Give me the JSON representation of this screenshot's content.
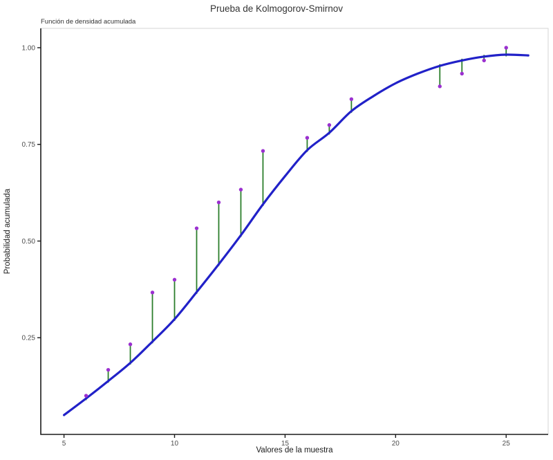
{
  "title": "Prueba de Kolmogorov-Smirnov",
  "subtitle": "Función de densidad acumulada",
  "chart_data": {
    "type": "line",
    "title": "Prueba de Kolmogorov-Smirnov",
    "subtitle": "Función de densidad acumulada",
    "xlabel": "Valores de la muestra",
    "ylabel": "Probabilidad acumulada",
    "xlim": [
      3.95,
      26.9
    ],
    "ylim": [
      0,
      1.05
    ],
    "x_ticks": [
      5,
      10,
      15,
      20,
      25
    ],
    "y_ticks": [
      0.25,
      0.5,
      0.75,
      1.0
    ],
    "y_tick_labels": [
      "0.25",
      "0.50",
      "0.75",
      "1.00"
    ],
    "grid": "off",
    "legend": "none",
    "series": [
      {
        "name": "curve",
        "description": "theoretical cumulative distribution (smooth blue curve)",
        "type": "smooth-line",
        "color": "#2121C8",
        "x": [
          5,
          6,
          7,
          8,
          9,
          10,
          11,
          12,
          13,
          14,
          15,
          16,
          17,
          18,
          19,
          20,
          21,
          22,
          23,
          24,
          25,
          26
        ],
        "y": [
          0.05,
          0.093,
          0.138,
          0.185,
          0.24,
          0.298,
          0.368,
          0.44,
          0.515,
          0.595,
          0.668,
          0.735,
          0.78,
          0.836,
          0.875,
          0.908,
          0.933,
          0.953,
          0.967,
          0.977,
          0.982,
          0.98
        ]
      },
      {
        "name": "points",
        "description": "empirical cumulative probabilities (purple dots)",
        "type": "scatter",
        "color": "#9B30D0",
        "x": [
          6,
          7,
          8,
          9,
          10,
          11,
          12,
          13,
          14,
          16,
          17,
          18,
          22,
          23,
          24,
          25
        ],
        "y": [
          0.1,
          0.167,
          0.233,
          0.367,
          0.4,
          0.533,
          0.6,
          0.633,
          0.733,
          0.767,
          0.8,
          0.867,
          0.9,
          0.933,
          0.967,
          1.0
        ]
      },
      {
        "name": "segments",
        "description": "vertical green segments joining each empirical point to the curve (K-S distances)",
        "type": "vertical-segments",
        "color": "#2B7E2B"
      }
    ]
  },
  "colors": {
    "curve": "#2121C8",
    "points": "#9B30D0",
    "segments": "#2B7E2B",
    "axis_line": "#1a1a1a",
    "panel_border": "#d5d5d5",
    "tick_text": "#4d4d4d",
    "background": "#ffffff"
  }
}
